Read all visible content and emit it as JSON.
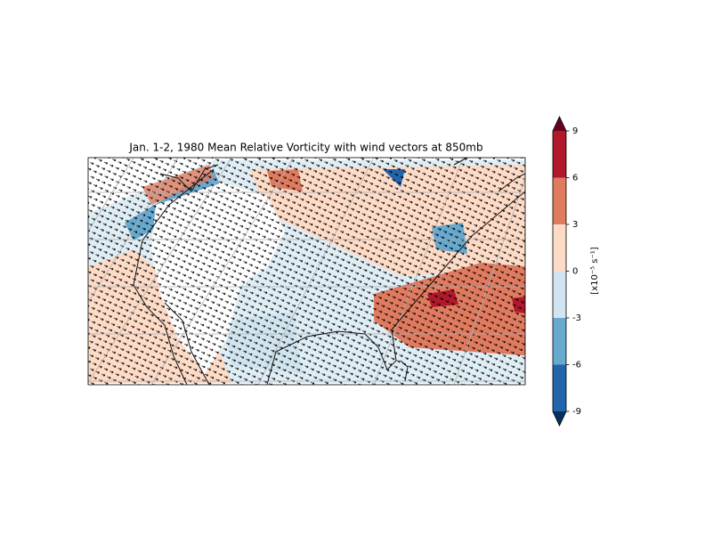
{
  "title": "Jan. 1-2, 1980 Mean Relative Vorticity with wind vectors at 850mb",
  "colorbar": {
    "label": "[x10⁻⁵ s⁻¹]",
    "ticks": [
      -9,
      -6,
      -3,
      0,
      3,
      6,
      9
    ],
    "colors": [
      "#2166ac",
      "#67a9cf",
      "#d1e5f0",
      "#fddbc7",
      "#e07b5f",
      "#b2182b"
    ],
    "under_color": "#053061",
    "over_color": "#67001f"
  }
}
